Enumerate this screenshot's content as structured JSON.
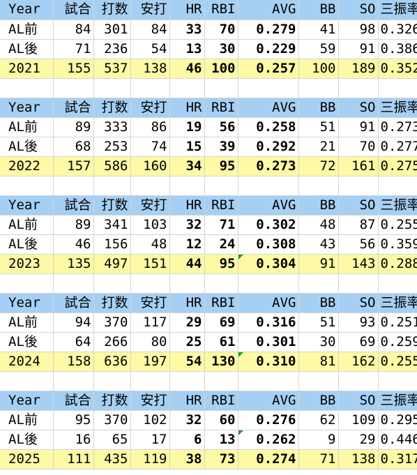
{
  "columns": [
    "Year",
    "試合",
    "打数",
    "安打",
    "HR",
    "RBI",
    "AVG",
    "BB",
    "SO",
    "三振率"
  ],
  "blocks": [
    {
      "rows": [
        {
          "kind": "data",
          "cells": [
            "AL前",
            "84",
            "301",
            "84",
            "33",
            "70",
            "0.279",
            "41",
            "98",
            "0.326"
          ]
        },
        {
          "kind": "data",
          "cells": [
            "AL後",
            "71",
            "236",
            "54",
            "13",
            "30",
            "0.229",
            "59",
            "91",
            "0.386"
          ]
        },
        {
          "kind": "total",
          "cells": [
            "2021",
            "155",
            "537",
            "138",
            "46",
            "100",
            "0.257",
            "100",
            "189",
            "0.352"
          ]
        }
      ]
    },
    {
      "rows": [
        {
          "kind": "data",
          "cells": [
            "AL前",
            "89",
            "333",
            "86",
            "19",
            "56",
            "0.258",
            "51",
            "91",
            "0.273"
          ]
        },
        {
          "kind": "data",
          "cells": [
            "AL後",
            "68",
            "253",
            "74",
            "15",
            "39",
            "0.292",
            "21",
            "70",
            "0.277"
          ]
        },
        {
          "kind": "total",
          "cells": [
            "2022",
            "157",
            "586",
            "160",
            "34",
            "95",
            "0.273",
            "72",
            "161",
            "0.275"
          ]
        }
      ]
    },
    {
      "rows": [
        {
          "kind": "data",
          "cells": [
            "AL前",
            "89",
            "341",
            "103",
            "32",
            "71",
            "0.302",
            "48",
            "87",
            "0.255"
          ]
        },
        {
          "kind": "data",
          "cells": [
            "AL後",
            "46",
            "156",
            "48",
            "12",
            "24",
            "0.308",
            "43",
            "56",
            "0.359"
          ]
        },
        {
          "kind": "total",
          "cells": [
            "2023",
            "135",
            "497",
            "151",
            "44",
            "95",
            "0.304",
            "91",
            "143",
            "0.288"
          ],
          "flag_col": 6
        }
      ]
    },
    {
      "rows": [
        {
          "kind": "data",
          "cells": [
            "AL前",
            "94",
            "370",
            "117",
            "29",
            "69",
            "0.316",
            "51",
            "93",
            "0.251"
          ]
        },
        {
          "kind": "data",
          "cells": [
            "AL後",
            "64",
            "266",
            "80",
            "25",
            "61",
            "0.301",
            "30",
            "69",
            "0.259"
          ]
        },
        {
          "kind": "total",
          "cells": [
            "2024",
            "158",
            "636",
            "197",
            "54",
            "130",
            "0.310",
            "81",
            "162",
            "0.255"
          ],
          "flag_col": 6
        }
      ]
    },
    {
      "rows": [
        {
          "kind": "data",
          "cells": [
            "AL前",
            "95",
            "370",
            "102",
            "32",
            "60",
            "0.276",
            "62",
            "109",
            "0.295"
          ]
        },
        {
          "kind": "data",
          "cells": [
            "AL後",
            "16",
            "65",
            "17",
            "6",
            "13",
            "0.262",
            "9",
            "29",
            "0.446"
          ],
          "flag_col": 6
        },
        {
          "kind": "total",
          "cells": [
            "2025",
            "111",
            "435",
            "119",
            "38",
            "73",
            "0.274",
            "71",
            "138",
            "0.317"
          ]
        }
      ]
    }
  ],
  "bold_columns": [
    4,
    5,
    6
  ],
  "colors": {
    "header_fill": "#a5d0f3",
    "total_fill": "#fdf9a5",
    "gridline": "#d4d4d4",
    "comment_flag": "#1e9b2e"
  }
}
